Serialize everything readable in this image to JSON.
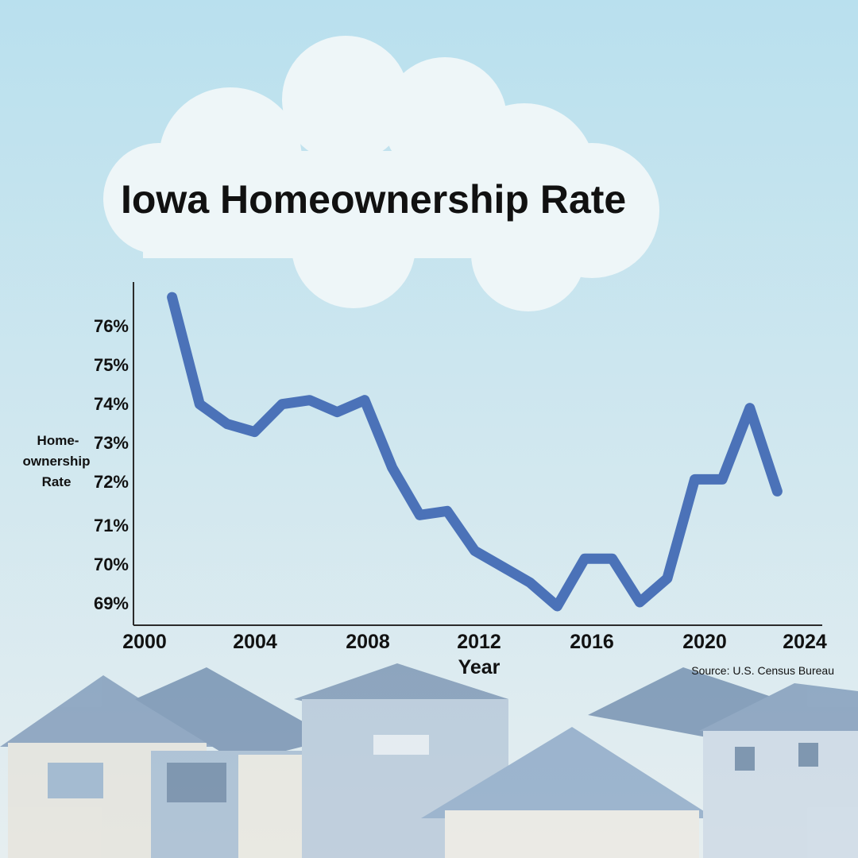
{
  "colors": {
    "sky_top": "#b9e0ee",
    "sky_bottom": "#e6eef0",
    "cloud": "#eef6f8",
    "line": "#4b72b8",
    "axis": "#2b2b2b",
    "text": "#111111"
  },
  "chart_data": {
    "type": "line",
    "title": "Iowa Homeownership Rate",
    "xlabel": "Year",
    "ylabel": "Home-ownership Rate",
    "ylabel_lines": [
      "Home-",
      "ownership",
      "Rate"
    ],
    "source": "Source: U.S. Census Bureau",
    "x_ticks": [
      "2000",
      "2004",
      "2008",
      "2012",
      "2016",
      "2020",
      "2024"
    ],
    "y_ticks": [
      "76%",
      "75%",
      "74%",
      "73%",
      "72%",
      "71%",
      "70%",
      "69%"
    ],
    "xlim": [
      2000,
      2024
    ],
    "ylim": [
      68.5,
      76.8
    ],
    "grid": false,
    "legend": "none",
    "series": [
      {
        "x": [
          2001,
          2002,
          2003,
          2004,
          2005,
          2006,
          2007,
          2008,
          2009,
          2010,
          2011,
          2012,
          2013,
          2014,
          2015,
          2016,
          2017,
          2018,
          2019,
          2020,
          2021,
          2022,
          2023
        ],
        "values": [
          76.7,
          74.0,
          73.5,
          73.3,
          74.0,
          74.1,
          73.8,
          74.1,
          72.4,
          71.2,
          71.3,
          70.3,
          69.9,
          69.5,
          68.9,
          70.1,
          70.1,
          69.0,
          69.6,
          72.1,
          72.1,
          73.9,
          71.8
        ]
      }
    ]
  }
}
